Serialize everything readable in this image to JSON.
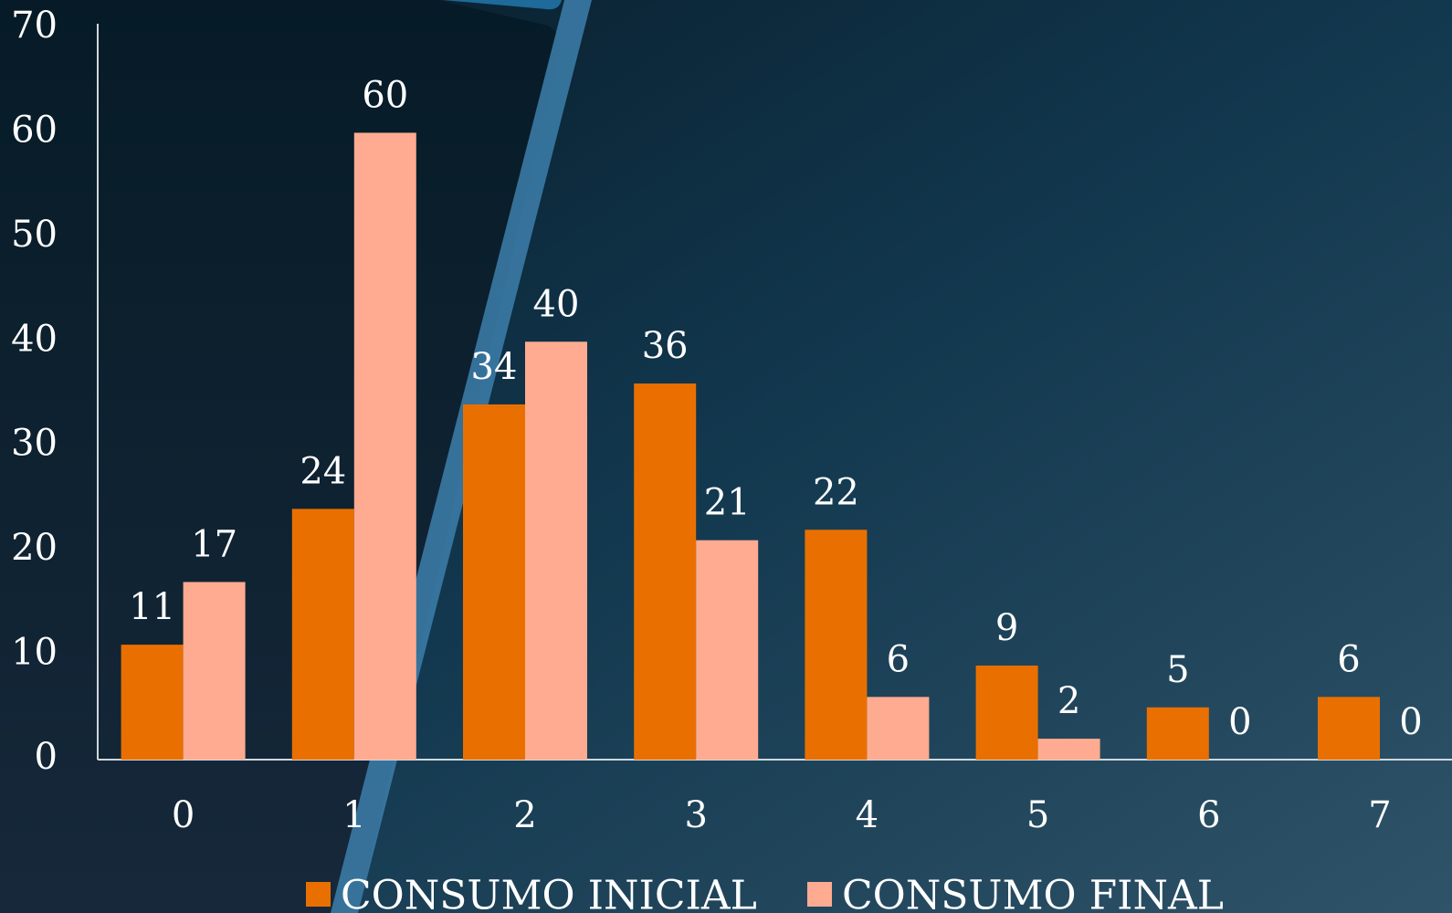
{
  "chart_data": {
    "type": "bar",
    "categories": [
      "0",
      "1",
      "2",
      "3",
      "4",
      "5",
      "6",
      "7"
    ],
    "series": [
      {
        "name": "CONSUMO INICIAL",
        "color": "#e97000",
        "values": [
          11,
          24,
          34,
          36,
          22,
          9,
          5,
          6
        ]
      },
      {
        "name": "CONSUMO FINAL",
        "color": "#ffab91",
        "values": [
          17,
          60,
          40,
          21,
          6,
          2,
          0,
          0
        ]
      }
    ],
    "ylim": [
      0,
      70
    ],
    "yticks": [
      0,
      10,
      20,
      30,
      40,
      50,
      60,
      70
    ],
    "legend": "bottom"
  }
}
